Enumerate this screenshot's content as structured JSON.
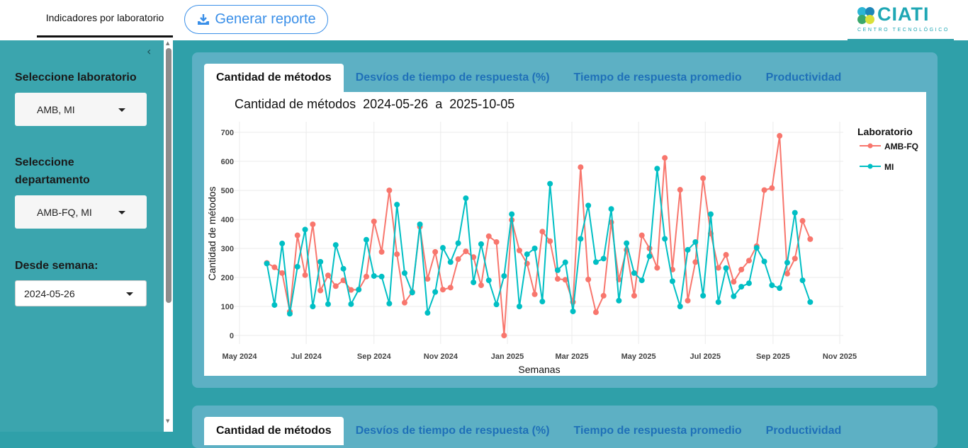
{
  "header": {
    "nav_tab": "Indicadores por laboratorio",
    "report_button": "Generar reporte",
    "logo_text": "CIATI",
    "logo_subtext": "CENTRO TECNOLÓGICO"
  },
  "sidebar": {
    "lab_label": "Seleccione laboratorio",
    "lab_value": "AMB, MI",
    "dept_label": "Seleccione departamento",
    "dept_value": "AMB-FQ, MI",
    "week_label": "Desde semana:",
    "week_value": "2024-05-26"
  },
  "tabs": [
    {
      "label": "Cantidad de métodos"
    },
    {
      "label": "Desvíos de tiempo de respuesta (%)"
    },
    {
      "label": "Tiempo de respuesta promedio"
    },
    {
      "label": "Productividad"
    }
  ],
  "colors": {
    "AMB-FQ": "#f8766d",
    "MI": "#00bfc4",
    "accent": "#3a8fe8"
  },
  "chart_data": {
    "type": "line",
    "title": "Cantidad de métodos  2024-05-26  a  2025-10-05",
    "xlabel": "Semanas",
    "ylabel": "Cantidad de métodos",
    "ylim": [
      0,
      700
    ],
    "yticks": [
      "0",
      "100",
      "200",
      "300",
      "400",
      "500",
      "600",
      "700"
    ],
    "xticks": [
      {
        "date": "2024-05-01",
        "label": "May 2024"
      },
      {
        "date": "2024-07-01",
        "label": "Jul 2024"
      },
      {
        "date": "2024-09-01",
        "label": "Sep 2024"
      },
      {
        "date": "2024-11-01",
        "label": "Nov 2024"
      },
      {
        "date": "2025-01-01",
        "label": "Jan 2025"
      },
      {
        "date": "2025-03-01",
        "label": "Mar 2025"
      },
      {
        "date": "2025-05-01",
        "label": "May 2025"
      },
      {
        "date": "2025-07-01",
        "label": "Jul 2025"
      },
      {
        "date": "2025-09-01",
        "label": "Sep 2025"
      },
      {
        "date": "2025-11-01",
        "label": "Nov 2025"
      }
    ],
    "grid": true,
    "legend_title": "Laboratorio",
    "legend_position": "right",
    "x": [
      "2024-05-26",
      "2024-06-02",
      "2024-06-09",
      "2024-06-16",
      "2024-06-23",
      "2024-06-30",
      "2024-07-07",
      "2024-07-14",
      "2024-07-21",
      "2024-07-28",
      "2024-08-04",
      "2024-08-11",
      "2024-08-18",
      "2024-08-25",
      "2024-09-01",
      "2024-09-08",
      "2024-09-15",
      "2024-09-22",
      "2024-09-29",
      "2024-10-06",
      "2024-10-13",
      "2024-10-20",
      "2024-10-27",
      "2024-11-03",
      "2024-11-10",
      "2024-11-17",
      "2024-11-24",
      "2024-12-01",
      "2024-12-08",
      "2024-12-15",
      "2024-12-22",
      "2024-12-29",
      "2025-01-05",
      "2025-01-12",
      "2025-01-19",
      "2025-01-26",
      "2025-02-02",
      "2025-02-09",
      "2025-02-16",
      "2025-02-23",
      "2025-03-02",
      "2025-03-09",
      "2025-03-16",
      "2025-03-23",
      "2025-03-30",
      "2025-04-06",
      "2025-04-13",
      "2025-04-20",
      "2025-04-27",
      "2025-05-04",
      "2025-05-11",
      "2025-05-18",
      "2025-05-25",
      "2025-06-01",
      "2025-06-08",
      "2025-06-15",
      "2025-06-22",
      "2025-06-29",
      "2025-07-06",
      "2025-07-13",
      "2025-07-20",
      "2025-07-27",
      "2025-08-03",
      "2025-08-10",
      "2025-08-17",
      "2025-08-24",
      "2025-08-31",
      "2025-09-07",
      "2025-09-14",
      "2025-09-21",
      "2025-09-28",
      "2025-10-05"
    ],
    "series": [
      {
        "name": "AMB-FQ",
        "values": [
          250,
          235,
          215,
          82,
          345,
          208,
          383,
          155,
          207,
          170,
          190,
          157,
          158,
          203,
          393,
          288,
          500,
          280,
          113,
          150,
          375,
          195,
          288,
          158,
          165,
          263,
          290,
          270,
          173,
          342,
          322,
          0,
          398,
          293,
          248,
          142,
          358,
          325,
          195,
          192,
          115,
          580,
          193,
          80,
          137,
          390,
          193,
          295,
          137,
          345,
          300,
          233,
          612,
          227,
          502,
          120,
          253,
          542,
          351,
          233,
          278,
          185,
          227,
          258,
          308,
          501,
          508,
          688,
          213,
          265,
          395,
          332
        ]
      },
      {
        "name": "MI",
        "values": [
          248,
          105,
          317,
          75,
          237,
          365,
          100,
          254,
          108,
          312,
          230,
          108,
          158,
          330,
          205,
          203,
          110,
          451,
          215,
          148,
          383,
          78,
          150,
          302,
          253,
          318,
          473,
          183,
          315,
          190,
          107,
          205,
          418,
          100,
          280,
          300,
          117,
          523,
          225,
          252,
          83,
          333,
          448,
          253,
          265,
          436,
          120,
          318,
          215,
          190,
          273,
          575,
          333,
          187,
          100,
          295,
          322,
          137,
          418,
          115,
          232,
          135,
          168,
          180,
          302,
          255,
          173,
          163,
          251,
          423,
          190,
          115
        ]
      }
    ]
  }
}
